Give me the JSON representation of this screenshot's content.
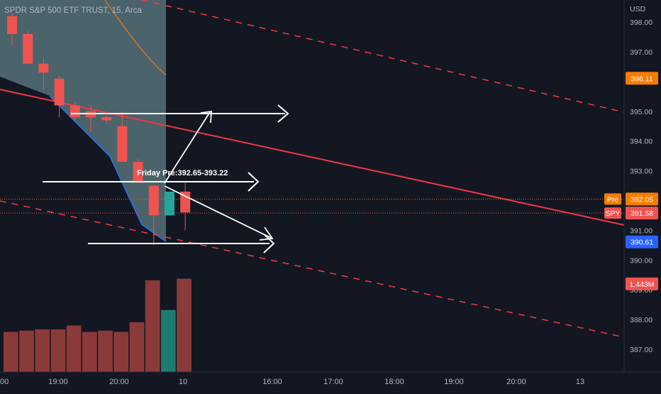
{
  "header": {
    "title": "SPDR S&P 500 ETF TRUST, 15, Arca"
  },
  "chart_data": {
    "type": "candlestick",
    "currency": "USD",
    "y_ticks": [
      "398.00",
      "397.00",
      "396.00",
      "395.00",
      "394.00",
      "393.00",
      "392.00",
      "391.00",
      "390.00",
      "389.00",
      "388.00",
      "387.00"
    ],
    "ylim": [
      386.6,
      398.3
    ],
    "x_ticks": [
      "00",
      "19:00",
      "20:00",
      "10",
      "16:00",
      "17:00",
      "18:00",
      "19:00",
      "20:00",
      "13"
    ],
    "candles": [
      {
        "open": 398.2,
        "high": 398.3,
        "low": 397.2,
        "close": 397.6,
        "dir": "down"
      },
      {
        "open": 397.6,
        "high": 397.7,
        "low": 396.6,
        "close": 396.6,
        "dir": "down"
      },
      {
        "open": 396.6,
        "high": 396.8,
        "low": 395.7,
        "close": 396.3,
        "dir": "down"
      },
      {
        "open": 396.1,
        "high": 396.2,
        "low": 394.8,
        "close": 395.2,
        "dir": "down"
      },
      {
        "open": 395.2,
        "high": 395.3,
        "low": 394.7,
        "close": 394.8,
        "dir": "down"
      },
      {
        "open": 395.0,
        "high": 395.2,
        "low": 394.3,
        "close": 394.8,
        "dir": "down"
      },
      {
        "open": 394.8,
        "high": 394.9,
        "low": 394.6,
        "close": 394.7,
        "dir": "down"
      },
      {
        "open": 394.5,
        "high": 395.0,
        "low": 393.3,
        "close": 393.3,
        "dir": "down"
      },
      {
        "open": 393.3,
        "high": 393.4,
        "low": 392.6,
        "close": 392.6,
        "dir": "down"
      },
      {
        "open": 392.5,
        "high": 392.5,
        "low": 390.5,
        "close": 391.5,
        "dir": "down"
      },
      {
        "open": 391.5,
        "high": 392.3,
        "low": 391.5,
        "close": 392.3,
        "dir": "up"
      },
      {
        "open": 392.3,
        "high": 392.6,
        "low": 391.0,
        "close": 391.6,
        "dir": "down"
      }
    ],
    "volumes": [
      {
        "value": 0.62,
        "dir": "down"
      },
      {
        "value": 0.64,
        "dir": "down"
      },
      {
        "value": 0.66,
        "dir": "down"
      },
      {
        "value": 0.66,
        "dir": "down"
      },
      {
        "value": 0.72,
        "dir": "down"
      },
      {
        "value": 0.62,
        "dir": "down"
      },
      {
        "value": 0.64,
        "dir": "down"
      },
      {
        "value": 0.62,
        "dir": "down"
      },
      {
        "value": 0.77,
        "dir": "down"
      },
      {
        "value": 1.42,
        "dir": "down"
      },
      {
        "value": 0.96,
        "dir": "up"
      },
      {
        "value": 1.443,
        "dir": "down"
      }
    ],
    "price_labels": [
      {
        "tag": "",
        "value": "396.11",
        "price": 396.11,
        "color": "#f57c00"
      },
      {
        "tag": "Pre",
        "value": "392.05",
        "price": 392.05,
        "color": "#f57c00"
      },
      {
        "tag": "SPY",
        "value": "391.58",
        "price": 391.58,
        "color": "#ef5350"
      },
      {
        "tag": "",
        "value": "390.61",
        "price": 390.61,
        "color": "#2962ff"
      },
      {
        "tag": "",
        "value": "1.443M",
        "price": 389.2,
        "color": "#ef5350"
      }
    ],
    "annotation": "Friday Pre:392.65-393.22",
    "colors": {
      "up": "#26a69a",
      "down": "#ef5350",
      "up_vol": "#1f7a6f",
      "down_vol": "#8b3a3a",
      "trend": "#f23645",
      "ma": "#e8762b",
      "background": "#131722",
      "axis_text": "#b2b5be"
    }
  }
}
